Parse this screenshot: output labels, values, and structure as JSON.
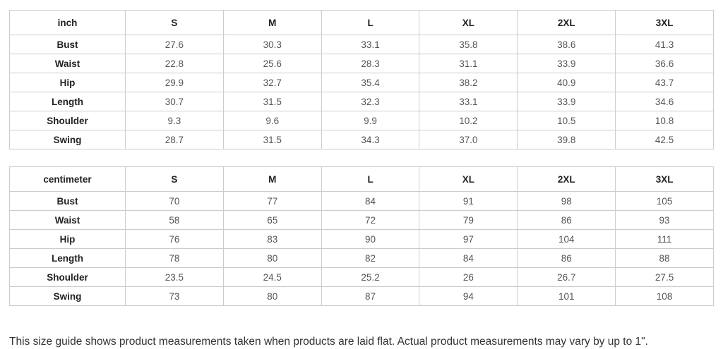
{
  "page": {
    "note": "This size guide shows product measurements taken when products are laid flat. Actual product measurements may vary by up to 1\"."
  },
  "colors": {
    "border": "#cccccc",
    "header_text": "#222222",
    "value_text": "#555555",
    "note_text": "#333333",
    "background": "#ffffff"
  },
  "tables": [
    {
      "unit_label": "inch",
      "columns": [
        "S",
        "M",
        "L",
        "XL",
        "2XL",
        "3XL"
      ],
      "rows": [
        {
          "label": "Bust",
          "values": [
            "27.6",
            "30.3",
            "33.1",
            "35.8",
            "38.6",
            "41.3"
          ]
        },
        {
          "label": "Waist",
          "values": [
            "22.8",
            "25.6",
            "28.3",
            "31.1",
            "33.9",
            "36.6"
          ]
        },
        {
          "label": "Hip",
          "values": [
            "29.9",
            "32.7",
            "35.4",
            "38.2",
            "40.9",
            "43.7"
          ]
        },
        {
          "label": "Length",
          "values": [
            "30.7",
            "31.5",
            "32.3",
            "33.1",
            "33.9",
            "34.6"
          ]
        },
        {
          "label": "Shoulder",
          "values": [
            "9.3",
            "9.6",
            "9.9",
            "10.2",
            "10.5",
            "10.8"
          ]
        },
        {
          "label": "Swing",
          "values": [
            "28.7",
            "31.5",
            "34.3",
            "37.0",
            "39.8",
            "42.5"
          ]
        }
      ]
    },
    {
      "unit_label": "centimeter",
      "columns": [
        "S",
        "M",
        "L",
        "XL",
        "2XL",
        "3XL"
      ],
      "rows": [
        {
          "label": "Bust",
          "values": [
            "70",
            "77",
            "84",
            "91",
            "98",
            "105"
          ]
        },
        {
          "label": "Waist",
          "values": [
            "58",
            "65",
            "72",
            "79",
            "86",
            "93"
          ]
        },
        {
          "label": "Hip",
          "values": [
            "76",
            "83",
            "90",
            "97",
            "104",
            "111"
          ]
        },
        {
          "label": "Length",
          "values": [
            "78",
            "80",
            "82",
            "84",
            "86",
            "88"
          ]
        },
        {
          "label": "Shoulder",
          "values": [
            "23.5",
            "24.5",
            "25.2",
            "26",
            "26.7",
            "27.5"
          ]
        },
        {
          "label": "Swing",
          "values": [
            "73",
            "80",
            "87",
            "94",
            "101",
            "108"
          ]
        }
      ]
    }
  ]
}
